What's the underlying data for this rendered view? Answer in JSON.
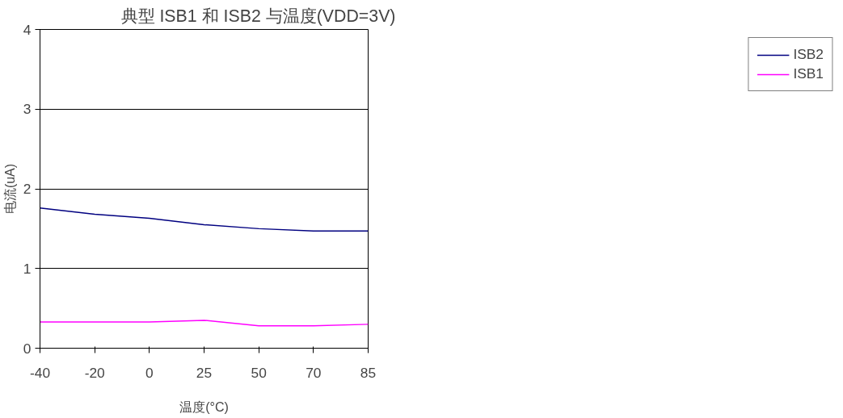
{
  "chart_data": {
    "type": "line",
    "title": "典型 ISB1 和 ISB2 与温度(VDD=3V)",
    "xlabel": "温度(°C)",
    "ylabel": "电流(uA)",
    "categories": [
      "-40",
      "-20",
      "0",
      "25",
      "50",
      "70",
      "85"
    ],
    "series": [
      {
        "name": "ISB2",
        "color": "#000080",
        "values": [
          1.76,
          1.68,
          1.63,
          1.55,
          1.5,
          1.47,
          1.47
        ]
      },
      {
        "name": "ISB1",
        "color": "#ff00ff",
        "values": [
          0.33,
          0.33,
          0.33,
          0.35,
          0.28,
          0.28,
          0.3
        ]
      }
    ],
    "ylim": [
      0,
      4
    ],
    "yticks": [
      0,
      1,
      2,
      3,
      4
    ],
    "grid": "y",
    "legend": "right",
    "marker": "none",
    "line_style": "solid"
  }
}
